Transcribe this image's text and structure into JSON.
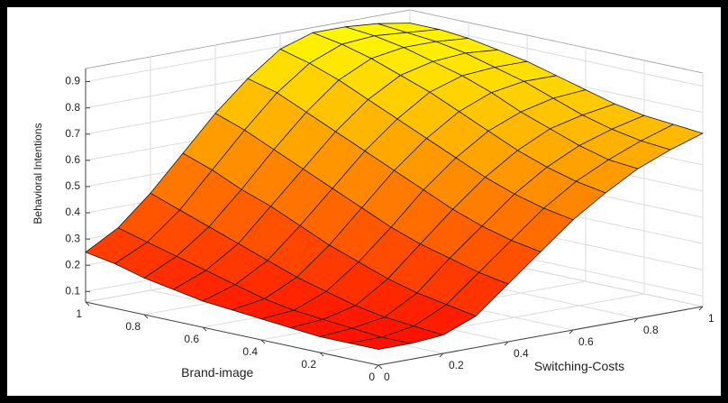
{
  "chart_data": {
    "type": "surface",
    "xlabel": "Switching-Costs",
    "ylabel": "Brand-image",
    "zlabel": "Behavioral Intentions",
    "x": [
      0,
      0.1,
      0.2,
      0.3,
      0.4,
      0.5,
      0.6,
      0.7,
      0.8,
      0.9,
      1
    ],
    "y": [
      0,
      0.1,
      0.2,
      0.3,
      0.4,
      0.5,
      0.6,
      0.7,
      0.8,
      0.9,
      1
    ],
    "z": [
      [
        0.12,
        0.12,
        0.13,
        0.18,
        0.28,
        0.38,
        0.48,
        0.56,
        0.63,
        0.68,
        0.72
      ],
      [
        0.12,
        0.12,
        0.14,
        0.2,
        0.3,
        0.4,
        0.5,
        0.58,
        0.64,
        0.69,
        0.73
      ],
      [
        0.12,
        0.13,
        0.15,
        0.22,
        0.33,
        0.43,
        0.53,
        0.61,
        0.67,
        0.71,
        0.74
      ],
      [
        0.13,
        0.14,
        0.17,
        0.25,
        0.36,
        0.47,
        0.57,
        0.65,
        0.71,
        0.74,
        0.76
      ],
      [
        0.14,
        0.15,
        0.2,
        0.29,
        0.4,
        0.52,
        0.62,
        0.7,
        0.75,
        0.78,
        0.79
      ],
      [
        0.15,
        0.17,
        0.23,
        0.33,
        0.45,
        0.57,
        0.67,
        0.75,
        0.8,
        0.82,
        0.82
      ],
      [
        0.16,
        0.2,
        0.27,
        0.38,
        0.5,
        0.62,
        0.72,
        0.8,
        0.84,
        0.85,
        0.85
      ],
      [
        0.18,
        0.23,
        0.31,
        0.43,
        0.55,
        0.67,
        0.77,
        0.84,
        0.87,
        0.88,
        0.87
      ],
      [
        0.2,
        0.26,
        0.35,
        0.47,
        0.6,
        0.72,
        0.82,
        0.88,
        0.9,
        0.9,
        0.89
      ],
      [
        0.23,
        0.29,
        0.39,
        0.52,
        0.65,
        0.77,
        0.86,
        0.91,
        0.92,
        0.91,
        0.9
      ],
      [
        0.25,
        0.32,
        0.43,
        0.56,
        0.69,
        0.8,
        0.89,
        0.93,
        0.93,
        0.92,
        0.9
      ]
    ],
    "xlim": [
      0,
      1
    ],
    "ylim": [
      0,
      1
    ],
    "zlim": [
      0.06,
      0.95
    ],
    "xticks": [
      0,
      0.2,
      0.4,
      0.6,
      0.8,
      1
    ],
    "yticks": [
      0,
      0.2,
      0.4,
      0.6,
      0.8,
      1
    ],
    "zticks": [
      0.1,
      0.2,
      0.3,
      0.4,
      0.5,
      0.6,
      0.7,
      0.8,
      0.9
    ],
    "grid": true,
    "colormap": "autumn",
    "edge_color": "#1a1a1a"
  }
}
